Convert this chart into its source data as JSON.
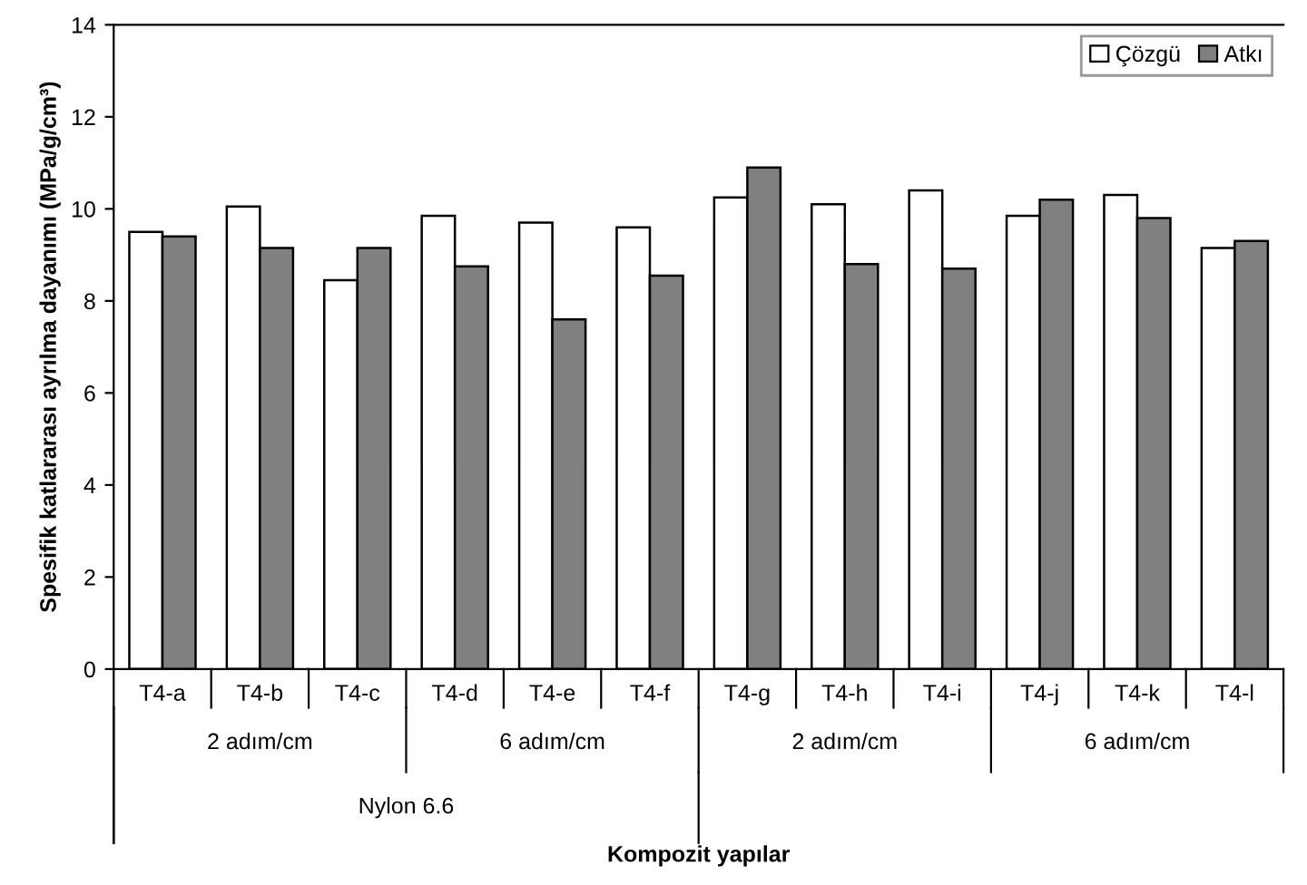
{
  "chart_data": {
    "type": "bar",
    "categories": [
      "T4-a",
      "T4-b",
      "T4-c",
      "T4-d",
      "T4-e",
      "T4-f",
      "T4-g",
      "T4-h",
      "T4-i",
      "T4-j",
      "T4-k",
      "T4-l"
    ],
    "series": [
      {
        "name": "Çözgü",
        "color": "#ffffff",
        "values": [
          9.5,
          10.05,
          8.45,
          9.85,
          9.7,
          9.6,
          10.25,
          10.1,
          10.4,
          9.85,
          10.3,
          9.15
        ]
      },
      {
        "name": "Atkı",
        "color": "#808080",
        "values": [
          9.4,
          9.15,
          9.15,
          8.75,
          7.6,
          8.55,
          10.9,
          8.8,
          8.7,
          10.2,
          9.8,
          9.3
        ]
      }
    ],
    "ylabel": "Spesifik katlararası ayrılma dayanımı (MPa/g/cm³)",
    "ylim": [
      0,
      14
    ],
    "yticks": [
      0,
      2,
      4,
      6,
      8,
      10,
      12,
      14
    ],
    "annotations": [
      "2 adım/cm",
      "6 adım/cm",
      "2 adım/cm",
      "6 adım/cm",
      "Nylon 6.6",
      "Kompozit yapılar"
    ],
    "legend": "top right",
    "grid": false
  }
}
